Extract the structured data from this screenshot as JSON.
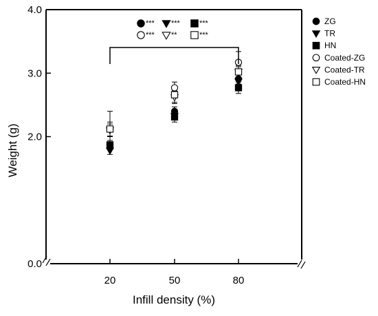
{
  "chart_data": {
    "type": "scatter",
    "xlabel": "Infill density (%)",
    "ylabel": "Weight (g)",
    "x_categories": [
      "20",
      "50",
      "80"
    ],
    "ylim": [
      0.0,
      4.0
    ],
    "y_ticks": [
      "0.0",
      "2.0",
      "3.0",
      "4.0"
    ],
    "y_axis_break": true,
    "x_axis_break": true,
    "grid": false,
    "legend_position": "right-top",
    "series": [
      {
        "name": "ZG",
        "marker": "circle-filled",
        "values": [
          1.87,
          2.4,
          2.91
        ],
        "errors": [
          0.07,
          0.07,
          0.08
        ]
      },
      {
        "name": "TR",
        "marker": "triangle-down-filled",
        "values": [
          1.78,
          2.33,
          2.87
        ],
        "errors": [
          0.06,
          0.06,
          0.07
        ]
      },
      {
        "name": "HN",
        "marker": "square-filled",
        "values": [
          1.87,
          2.31,
          2.77
        ],
        "errors": [
          0.05,
          0.08,
          0.09
        ]
      },
      {
        "name": "Coated-ZG",
        "marker": "circle-open",
        "values": [
          2.12,
          2.77,
          3.17
        ],
        "errors": [
          0.28,
          0.09,
          0.17
        ]
      },
      {
        "name": "Coated-TR",
        "marker": "triangle-down-open",
        "values": [
          2.1,
          2.62,
          3.02
        ],
        "errors": [
          0.1,
          0.1,
          0.08
        ]
      },
      {
        "name": "Coated-HN",
        "marker": "square-open",
        "values": [
          2.12,
          2.66,
          3.02
        ],
        "errors": [
          0.11,
          0.12,
          0.1
        ]
      }
    ],
    "significance": {
      "bracket_from": "20",
      "bracket_to": "80",
      "rows": [
        [
          {
            "marker": "circle-filled",
            "label": "***"
          },
          {
            "marker": "triangle-down-filled",
            "label": "***"
          },
          {
            "marker": "square-filled",
            "label": "***"
          }
        ],
        [
          {
            "marker": "circle-open",
            "label": "***"
          },
          {
            "marker": "triangle-down-open",
            "label": "**"
          },
          {
            "marker": "square-open",
            "label": "***"
          }
        ]
      ]
    }
  }
}
